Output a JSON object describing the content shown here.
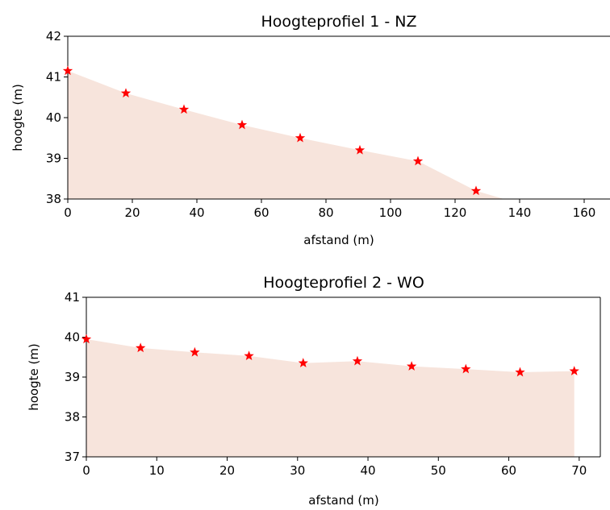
{
  "chart_data": [
    {
      "type": "area",
      "title": "Hoogteprofiel 1 - NZ",
      "xlabel": "afstand (m)",
      "ylabel": "hoogte (m)",
      "xlim": [
        0,
        168
      ],
      "ylim": [
        38,
        42
      ],
      "xticks": [
        0,
        20,
        40,
        60,
        80,
        100,
        120,
        140,
        160
      ],
      "yticks": [
        38,
        39,
        40,
        41,
        42
      ],
      "fill_color": "#f7e4dc",
      "marker_color": "#ff0000",
      "marker": "star",
      "grid": false,
      "profile": {
        "x": [
          0,
          18,
          36,
          54,
          72,
          90.5,
          108.5,
          126.5,
          136
        ],
        "y": [
          41.15,
          40.6,
          40.2,
          39.82,
          39.5,
          39.2,
          38.93,
          38.2,
          37.98
        ]
      },
      "points": {
        "x": [
          0,
          18,
          36,
          54,
          72,
          90.5,
          108.5,
          126.5
        ],
        "y": [
          41.15,
          40.6,
          40.2,
          39.82,
          39.5,
          39.2,
          38.93,
          38.2
        ]
      }
    },
    {
      "type": "area",
      "title": "Hoogteprofiel 2 - WO",
      "xlabel": "afstand (m)",
      "ylabel": "hoogte (m)",
      "xlim": [
        0,
        73
      ],
      "ylim": [
        37,
        41
      ],
      "xticks": [
        0,
        10,
        20,
        30,
        40,
        50,
        60,
        70
      ],
      "yticks": [
        37,
        38,
        39,
        40,
        41
      ],
      "fill_color": "#f7e4dc",
      "marker_color": "#ff0000",
      "marker": "star",
      "grid": false,
      "profile": {
        "x": [
          0,
          7.7,
          15.4,
          23.1,
          30.8,
          38.5,
          46.2,
          53.9,
          61.6,
          69.3
        ],
        "y": [
          39.95,
          39.73,
          39.62,
          39.53,
          39.35,
          39.4,
          39.27,
          39.2,
          39.12,
          39.15
        ]
      },
      "points": {
        "x": [
          0,
          7.7,
          15.4,
          23.1,
          30.8,
          38.5,
          46.2,
          53.9,
          61.6,
          69.3
        ],
        "y": [
          39.95,
          39.73,
          39.62,
          39.53,
          39.35,
          39.4,
          39.27,
          39.2,
          39.12,
          39.15
        ]
      }
    }
  ]
}
